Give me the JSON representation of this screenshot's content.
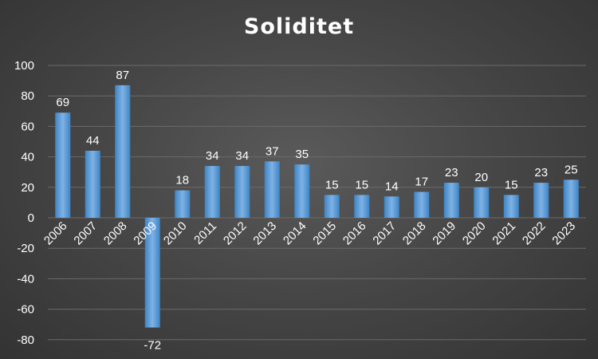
{
  "chart_data": {
    "type": "bar",
    "title": "Soliditet",
    "categories": [
      "2006",
      "2007",
      "2008",
      "2009",
      "2010",
      "2011",
      "2012",
      "2013",
      "2014",
      "2015",
      "2016",
      "2017",
      "2018",
      "2019",
      "2020",
      "2021",
      "2022",
      "2023"
    ],
    "values": [
      69,
      44,
      87,
      -72,
      18,
      34,
      34,
      37,
      35,
      15,
      15,
      14,
      17,
      23,
      20,
      15,
      23,
      25
    ],
    "xlabel": "",
    "ylabel": "",
    "ylim": [
      -80,
      100
    ],
    "yticks": [
      100,
      80,
      60,
      40,
      20,
      0,
      -20,
      -40,
      -60,
      -80
    ],
    "grid": true,
    "legend": "none",
    "colors": {
      "bar": "#5b9bd5",
      "bar_light": "#7fb2e5",
      "grid": "#6a6a6a",
      "text": "#ffffff"
    }
  }
}
